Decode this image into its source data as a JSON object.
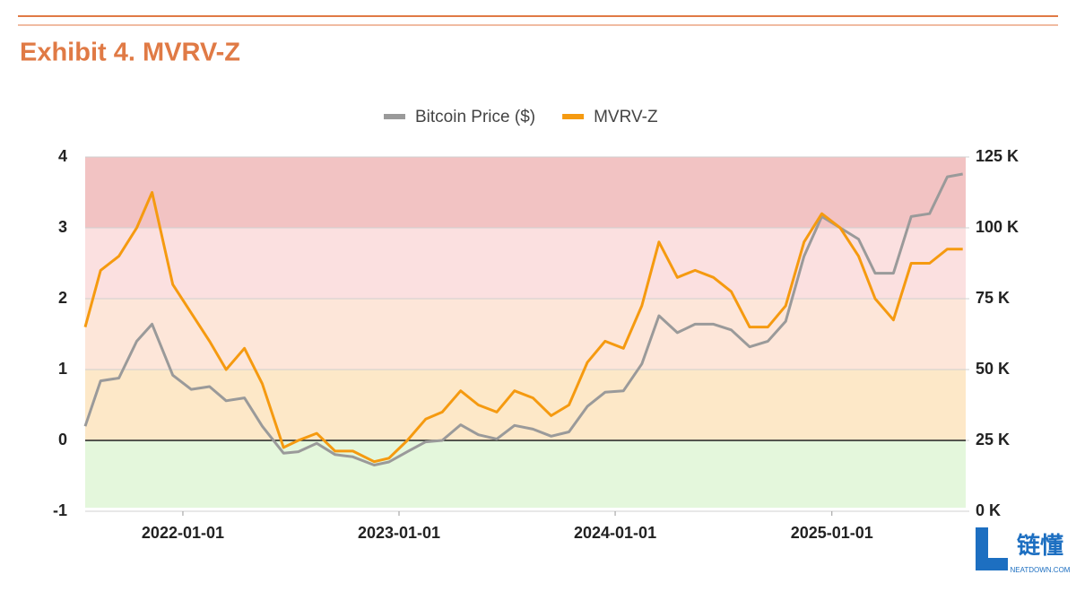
{
  "chart_data": {
    "type": "line",
    "title": "Exhibit 4. MVRV-Z",
    "x": [
      "2021-07-20",
      "2021-08-15",
      "2021-09-15",
      "2021-10-15",
      "2021-11-10",
      "2021-12-15",
      "2022-01-15",
      "2022-02-15",
      "2022-03-15",
      "2022-04-15",
      "2022-05-15",
      "2022-06-20",
      "2022-07-15",
      "2022-08-15",
      "2022-09-15",
      "2022-10-15",
      "2022-11-20",
      "2022-12-15",
      "2023-01-15",
      "2023-02-15",
      "2023-03-15",
      "2023-04-15",
      "2023-05-15",
      "2023-06-15",
      "2023-07-15",
      "2023-08-15",
      "2023-09-15",
      "2023-10-15",
      "2023-11-15",
      "2023-12-15",
      "2024-01-15",
      "2024-02-15",
      "2024-03-15",
      "2024-04-15",
      "2024-05-15",
      "2024-06-15",
      "2024-07-15",
      "2024-08-15",
      "2024-09-15",
      "2024-10-15",
      "2024-11-15",
      "2024-12-15",
      "2025-01-15",
      "2025-02-15",
      "2025-03-15",
      "2025-04-15",
      "2025-05-15",
      "2025-06-15",
      "2025-07-15",
      "2025-08-10"
    ],
    "series": [
      {
        "name": "Bitcoin Price ($)",
        "color": "#9a9a9a",
        "axis": "y2",
        "values": [
          30000,
          46000,
          47000,
          60000,
          66000,
          48000,
          43000,
          44000,
          39000,
          40000,
          30000,
          20500,
          21000,
          24000,
          20000,
          19200,
          16300,
          17400,
          21000,
          24500,
          25000,
          30500,
          27000,
          25500,
          30300,
          29000,
          26500,
          28000,
          37000,
          42000,
          42500,
          52000,
          69000,
          63000,
          66000,
          66000,
          64000,
          58000,
          60000,
          67000,
          90000,
          104000,
          100000,
          96000,
          84000,
          84000,
          104000,
          105000,
          118000,
          119000
        ]
      },
      {
        "name": "MVRV-Z",
        "color": "#f59a10",
        "values": [
          1.6,
          2.4,
          2.6,
          3.0,
          3.5,
          2.2,
          1.8,
          1.4,
          1.0,
          1.3,
          0.8,
          -0.1,
          0.0,
          0.1,
          -0.15,
          -0.15,
          -0.3,
          -0.25,
          0.0,
          0.3,
          0.4,
          0.7,
          0.5,
          0.4,
          0.7,
          0.6,
          0.35,
          0.5,
          1.1,
          1.4,
          1.3,
          1.9,
          2.8,
          2.3,
          2.4,
          2.3,
          2.1,
          1.6,
          1.6,
          1.9,
          2.8,
          3.2,
          3.0,
          2.6,
          2.0,
          1.7,
          2.5,
          2.5,
          2.7,
          2.7
        ]
      }
    ],
    "xlim": [
      "2021-07-20",
      "2025-08-15"
    ],
    "xticks": [
      "2022-01-01",
      "2023-01-01",
      "2024-01-01",
      "2025-01-01"
    ],
    "ylim": [
      -1,
      4
    ],
    "yticks": [
      -1,
      0,
      1,
      2,
      3,
      4
    ],
    "y2lim": [
      0,
      125000
    ],
    "y2ticks": [
      {
        "value": 0,
        "label": "0 K"
      },
      {
        "value": 25000,
        "label": "25 K"
      },
      {
        "value": 50000,
        "label": "50 K"
      },
      {
        "value": 75000,
        "label": "75 K"
      },
      {
        "value": 100000,
        "label": "100 K"
      },
      {
        "value": 125000,
        "label": "125 K"
      }
    ],
    "zones": [
      {
        "from": 3,
        "to": 4,
        "color": "#f2c3c3"
      },
      {
        "from": 2,
        "to": 3,
        "color": "#fbe0e0"
      },
      {
        "from": 1,
        "to": 2,
        "color": "#fde6d9"
      },
      {
        "from": 0,
        "to": 1,
        "color": "#fde8c8"
      },
      {
        "from": -0.95,
        "to": 0,
        "color": "#e4f7dc"
      }
    ],
    "grid": true,
    "legend": "top"
  },
  "watermark": {
    "name": "链懂",
    "site": "NEATDOWN.COM"
  }
}
